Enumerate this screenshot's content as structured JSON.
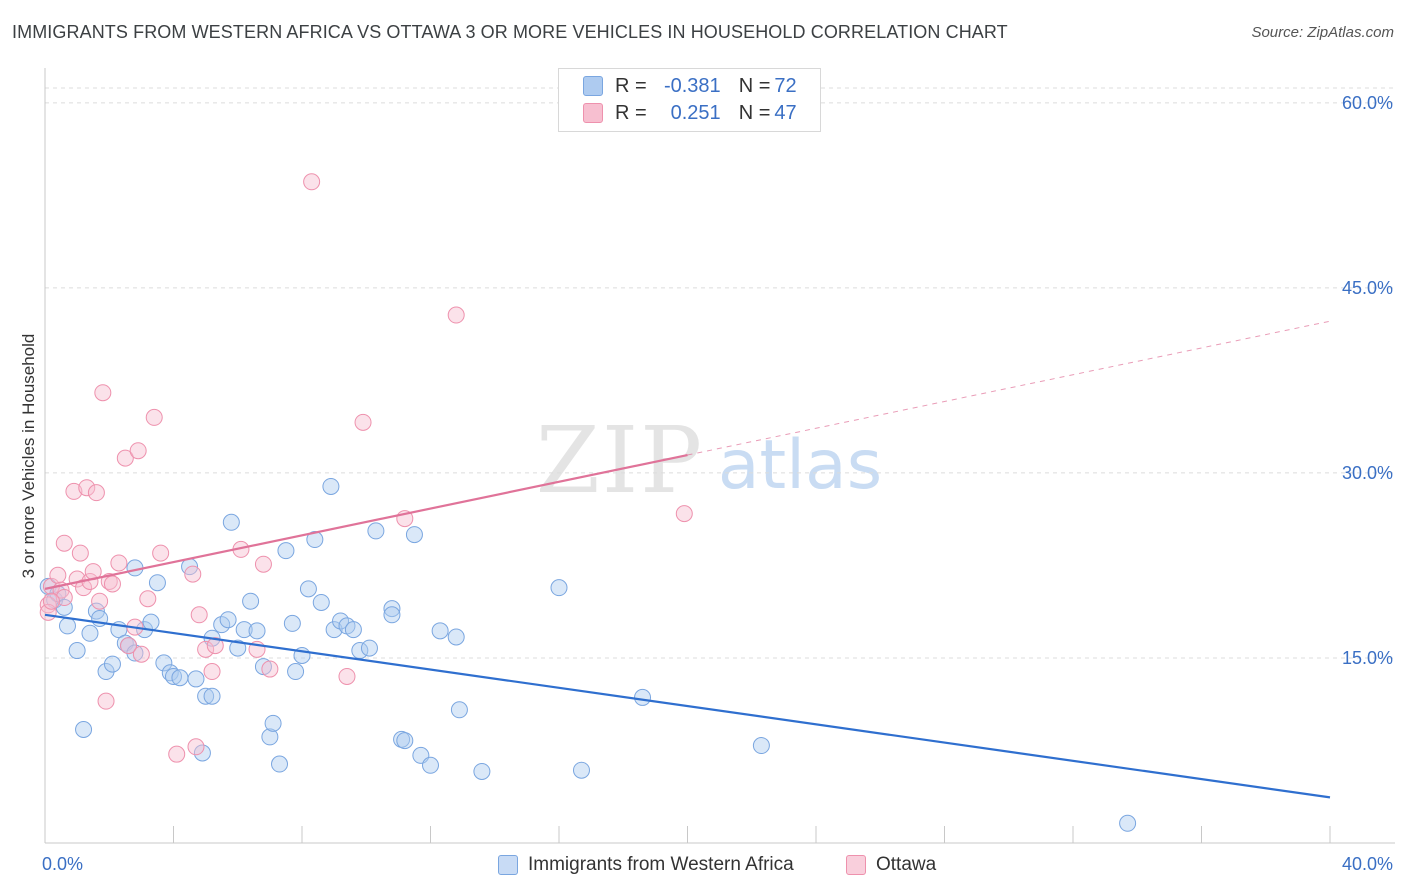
{
  "title": "IMMIGRANTS FROM WESTERN AFRICA VS OTTAWA 3 OR MORE VEHICLES IN HOUSEHOLD CORRELATION CHART",
  "source": "Source: ZipAtlas.com",
  "watermark": {
    "zip": "ZIP",
    "atlas": "atlas"
  },
  "legend": {
    "r_label": "R =",
    "n_label": "N =",
    "rows": [
      {
        "r": "-0.381",
        "n": "72",
        "fill": "#aecbf0",
        "stroke": "#7aa6e0"
      },
      {
        "r": "0.251",
        "n": "47",
        "fill": "#f7bfd0",
        "stroke": "#ee91ad"
      }
    ]
  },
  "bottom_legend": [
    {
      "label": "Immigrants from Western Africa",
      "fill": "#c8dbf5",
      "stroke": "#7aa6e0"
    },
    {
      "label": "Ottawa",
      "fill": "#f9cfdc",
      "stroke": "#ee91ad"
    }
  ],
  "chart_data": {
    "type": "scatter",
    "ylabel": "3 or more Vehicles in Household",
    "xlabel": "",
    "xlim": [
      0,
      40
    ],
    "ylim": [
      0,
      62.5
    ],
    "x_tick_labels": [
      {
        "x": 0,
        "label": "0.0%"
      },
      {
        "x": 40,
        "label": "40.0%"
      }
    ],
    "y_tick_labels": [
      {
        "y": 15,
        "label": "15.0%"
      },
      {
        "y": 30,
        "label": "30.0%"
      },
      {
        "y": 45,
        "label": "45.0%"
      },
      {
        "y": 60,
        "label": "60.0%"
      }
    ],
    "x_minor_ticks": [
      0,
      4,
      8,
      12,
      16,
      20,
      24,
      28,
      32,
      36,
      40
    ],
    "y_grid": [
      15,
      30,
      45,
      60
    ],
    "series": [
      {
        "name": "Immigrants from Western Africa",
        "color": "#7aa6e0",
        "fill": "rgba(174,203,240,0.45)",
        "line_color": "#2f6fcf",
        "trend": {
          "x0": 0,
          "y0": 18.5,
          "x1": 40,
          "y1": 3.7,
          "dash_from": null
        },
        "points": [
          [
            0.1,
            20.8
          ],
          [
            0.3,
            19.7
          ],
          [
            0.4,
            20.2
          ],
          [
            0.6,
            19.1
          ],
          [
            0.7,
            17.6
          ],
          [
            1.0,
            15.6
          ],
          [
            1.2,
            9.2
          ],
          [
            1.4,
            17.0
          ],
          [
            1.6,
            18.8
          ],
          [
            1.7,
            18.2
          ],
          [
            1.9,
            13.9
          ],
          [
            2.1,
            14.5
          ],
          [
            2.3,
            17.3
          ],
          [
            2.5,
            16.2
          ],
          [
            2.6,
            16.0
          ],
          [
            2.8,
            15.4
          ],
          [
            2.8,
            22.3
          ],
          [
            3.1,
            17.3
          ],
          [
            3.3,
            17.9
          ],
          [
            3.5,
            21.1
          ],
          [
            3.7,
            14.6
          ],
          [
            3.9,
            13.8
          ],
          [
            4.0,
            13.5
          ],
          [
            4.2,
            13.4
          ],
          [
            4.5,
            22.4
          ],
          [
            4.7,
            13.3
          ],
          [
            4.9,
            7.3
          ],
          [
            5.0,
            11.9
          ],
          [
            5.2,
            16.6
          ],
          [
            5.2,
            11.9
          ],
          [
            5.5,
            17.7
          ],
          [
            5.7,
            18.1
          ],
          [
            5.8,
            26.0
          ],
          [
            6.0,
            15.8
          ],
          [
            6.2,
            17.3
          ],
          [
            6.4,
            19.6
          ],
          [
            6.6,
            17.2
          ],
          [
            6.8,
            14.3
          ],
          [
            7.0,
            8.6
          ],
          [
            7.1,
            9.7
          ],
          [
            7.3,
            6.4
          ],
          [
            7.5,
            23.7
          ],
          [
            7.7,
            17.8
          ],
          [
            7.8,
            13.9
          ],
          [
            8.0,
            15.2
          ],
          [
            8.2,
            20.6
          ],
          [
            8.4,
            24.6
          ],
          [
            8.6,
            19.5
          ],
          [
            8.9,
            28.9
          ],
          [
            9.0,
            17.3
          ],
          [
            9.2,
            18.0
          ],
          [
            9.4,
            17.6
          ],
          [
            9.6,
            17.3
          ],
          [
            9.8,
            15.6
          ],
          [
            10.1,
            15.8
          ],
          [
            10.3,
            25.3
          ],
          [
            10.8,
            19.0
          ],
          [
            10.8,
            18.5
          ],
          [
            11.1,
            8.4
          ],
          [
            11.2,
            8.3
          ],
          [
            11.5,
            25.0
          ],
          [
            11.7,
            7.1
          ],
          [
            12.0,
            6.3
          ],
          [
            12.3,
            17.2
          ],
          [
            12.8,
            16.7
          ],
          [
            12.9,
            10.8
          ],
          [
            13.6,
            5.8
          ],
          [
            16.0,
            20.7
          ],
          [
            16.7,
            5.9
          ],
          [
            18.6,
            11.8
          ],
          [
            22.3,
            7.9
          ],
          [
            33.7,
            1.6
          ]
        ]
      },
      {
        "name": "Ottawa",
        "color": "#ee91ad",
        "fill": "rgba(247,191,208,0.45)",
        "line_color": "#e07399",
        "trend": {
          "x0": 0,
          "y0": 20.6,
          "x1": 40,
          "y1": 42.3,
          "dash_from": 20
        },
        "points": [
          [
            0.1,
            19.3
          ],
          [
            0.2,
            20.8
          ],
          [
            0.4,
            21.7
          ],
          [
            0.5,
            20.5
          ],
          [
            0.6,
            19.9
          ],
          [
            0.6,
            24.3
          ],
          [
            0.9,
            28.5
          ],
          [
            1.0,
            21.4
          ],
          [
            1.1,
            23.5
          ],
          [
            1.2,
            20.7
          ],
          [
            1.3,
            28.8
          ],
          [
            1.4,
            21.2
          ],
          [
            1.5,
            22.0
          ],
          [
            1.6,
            28.4
          ],
          [
            1.7,
            19.6
          ],
          [
            1.8,
            36.5
          ],
          [
            1.9,
            11.5
          ],
          [
            2.0,
            21.2
          ],
          [
            2.1,
            21.0
          ],
          [
            2.3,
            22.7
          ],
          [
            2.5,
            31.2
          ],
          [
            2.6,
            16.0
          ],
          [
            2.8,
            17.5
          ],
          [
            2.9,
            31.8
          ],
          [
            3.0,
            15.3
          ],
          [
            3.2,
            19.8
          ],
          [
            3.4,
            34.5
          ],
          [
            3.6,
            23.5
          ],
          [
            4.1,
            7.2
          ],
          [
            4.6,
            21.8
          ],
          [
            4.7,
            7.8
          ],
          [
            4.8,
            18.5
          ],
          [
            5.0,
            15.7
          ],
          [
            5.2,
            13.9
          ],
          [
            5.3,
            16.0
          ],
          [
            6.1,
            23.8
          ],
          [
            6.6,
            15.7
          ],
          [
            6.8,
            22.6
          ],
          [
            7.0,
            14.1
          ],
          [
            8.3,
            53.6
          ],
          [
            9.4,
            13.5
          ],
          [
            9.9,
            34.1
          ],
          [
            11.2,
            26.3
          ],
          [
            12.8,
            42.8
          ],
          [
            19.9,
            26.7
          ],
          [
            0.1,
            18.7
          ],
          [
            0.2,
            19.6
          ]
        ]
      }
    ]
  }
}
